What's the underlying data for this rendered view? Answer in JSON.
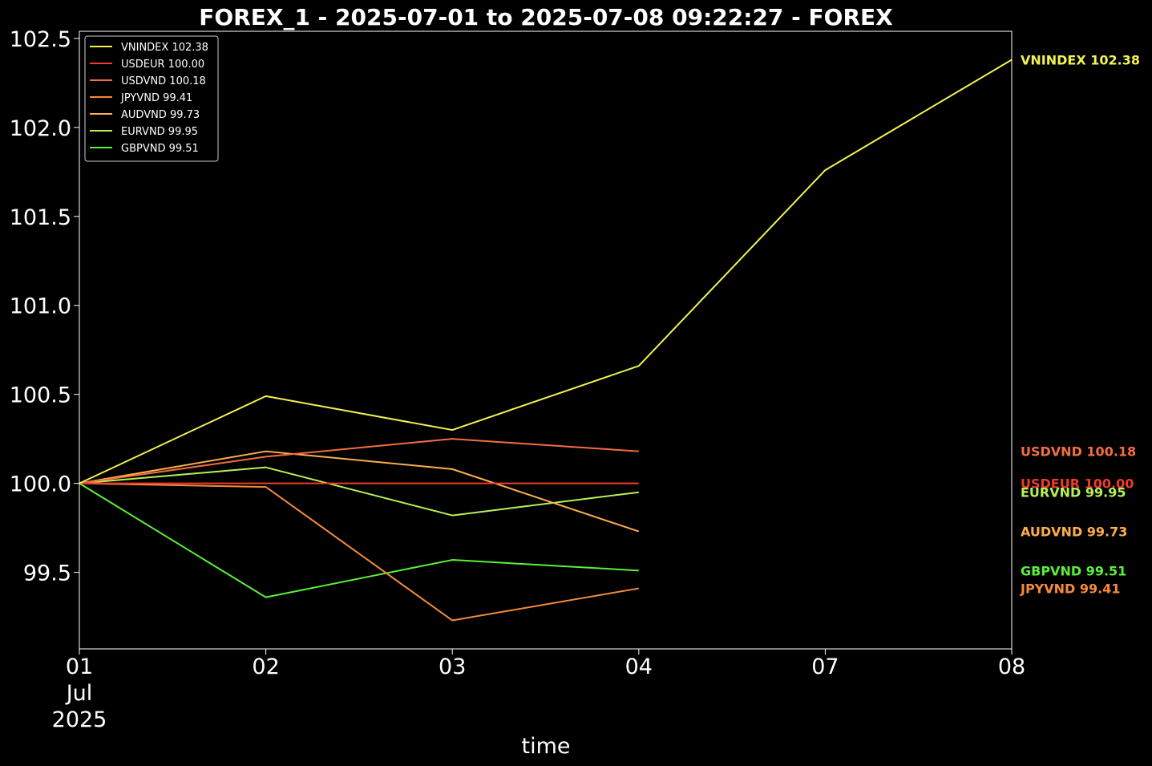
{
  "chart_data": {
    "type": "line",
    "title": "FOREX_1 - 2025-07-01 to 2025-07-08 09:22:27 - FOREX",
    "xlabel": "time",
    "ylabel": "",
    "x": [
      "2025-07-01",
      "2025-07-02",
      "2025-07-03",
      "2025-07-04",
      "2025-07-07",
      "2025-07-08"
    ],
    "x_tick_labels": [
      "01",
      "02",
      "03",
      "04",
      "07",
      "08"
    ],
    "x_tick_sublabel": [
      "Jul",
      "2025"
    ],
    "ylim": [
      99.07,
      102.54
    ],
    "y_ticks": [
      99.5,
      100.0,
      100.5,
      101.0,
      101.5,
      102.0,
      102.5
    ],
    "y_tick_labels": [
      "99.5",
      "100.0",
      "100.5",
      "101.0",
      "101.5",
      "102.0",
      "102.5"
    ],
    "grid": false,
    "legend_position": "top-left",
    "series": [
      {
        "name": "VNINDEX",
        "legend": "VNINDEX 102.38",
        "end_label": "VNINDEX 102.38",
        "color": "#f2f252",
        "values": [
          100.0,
          100.49,
          100.3,
          100.66,
          101.76,
          102.38
        ]
      },
      {
        "name": "USDEUR",
        "legend": "USDEUR 100.00",
        "end_label": "USDEUR 100.00",
        "color": "#ef3b2c",
        "values": [
          100.0,
          100.0,
          100.0,
          100.0,
          null,
          null
        ]
      },
      {
        "name": "USDVND",
        "legend": "USDVND 100.18",
        "end_label": "USDVND 100.18",
        "color": "#f46d43",
        "values": [
          100.0,
          100.15,
          100.25,
          100.18,
          null,
          null
        ]
      },
      {
        "name": "JPYVND",
        "legend": "JPYVND 99.41",
        "end_label": "JPYVND 99.41",
        "color": "#f58a3d",
        "values": [
          100.0,
          99.98,
          99.23,
          99.41,
          null,
          null
        ]
      },
      {
        "name": "AUDVND",
        "legend": "AUDVND 99.73",
        "end_label": "AUDVND 99.73",
        "color": "#fdae4b",
        "values": [
          100.0,
          100.18,
          100.08,
          99.73,
          null,
          null
        ]
      },
      {
        "name": "EURVND",
        "legend": "EURVND 99.95",
        "end_label": "EURVND 99.95",
        "color": "#b5f257",
        "values": [
          100.0,
          100.09,
          99.82,
          99.95,
          null,
          null
        ]
      },
      {
        "name": "GBPVND",
        "legend": "GBPVND 99.51",
        "end_label": "GBPVND 99.51",
        "color": "#5af03a",
        "values": [
          100.0,
          99.36,
          99.57,
          99.51,
          null,
          null
        ]
      }
    ]
  }
}
